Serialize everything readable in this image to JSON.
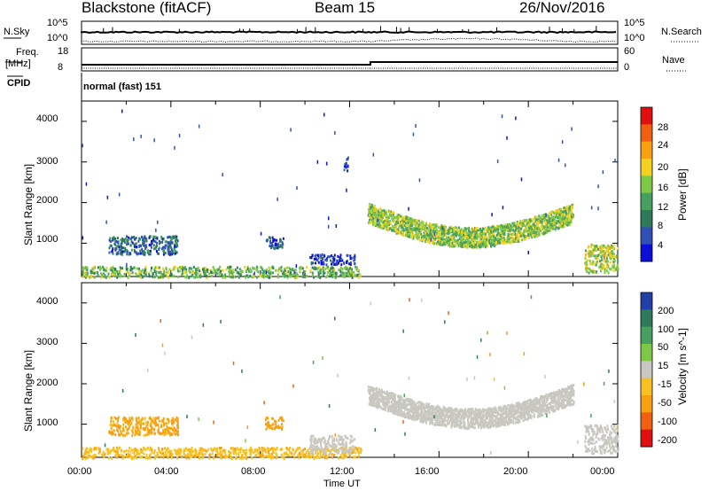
{
  "header": {
    "station": "Blackstone (fitACF)",
    "beam": "Beam 15",
    "date": "26/Nov/2016"
  },
  "top_labels": {
    "nsky": "N.Sky",
    "nsky_ticks": [
      "10^5",
      "10^0"
    ],
    "nsearch": "N.Search",
    "nsearch_ticks": [
      "10^5",
      "10^0"
    ],
    "freq": "Freq.",
    "freq_unit": "[MHz]",
    "freq_ticks": [
      "18",
      "8"
    ],
    "nave": "Nave",
    "nave_ticks": [
      "60",
      "0"
    ],
    "cpid": "CPID",
    "cpid_value": "normal (fast) 151"
  },
  "chart_data": [
    {
      "type": "heatmap",
      "title": "",
      "ylabel": "Slant Range [km]",
      "xlabel": "Time UT",
      "ylim": [
        180,
        4500
      ],
      "y_ticks": [
        "1000",
        "2000",
        "3000",
        "4000"
      ],
      "x_ticks": [
        "00:00",
        "04:00",
        "08:00",
        "12:00",
        "16:00",
        "20:00",
        "00:00"
      ],
      "colorbar": {
        "label": "Power [dB]",
        "ticks": [
          "4",
          "8",
          "12",
          "16",
          "20",
          "24",
          "28"
        ],
        "colors": [
          "#0a10d8",
          "#3050b8",
          "#2e7a5a",
          "#48a060",
          "#7ec848",
          "#f4d020",
          "#f8a010",
          "#f06010",
          "#e01010"
        ]
      },
      "features": [
        {
          "t_start": 0.0,
          "t_end": 12.5,
          "range_low": 180,
          "range_high": 450,
          "power": 18
        },
        {
          "t_start": 1.2,
          "t_end": 4.3,
          "range_low": 750,
          "range_high": 1200,
          "power": 10
        },
        {
          "t_start": 8.2,
          "t_end": 9.0,
          "range_low": 900,
          "range_high": 1200,
          "power": 8
        },
        {
          "t_start": 10.2,
          "t_end": 12.2,
          "range_low": 500,
          "range_high": 750,
          "power": 6
        },
        {
          "t_start": 11.7,
          "t_end": 11.9,
          "range_low": 2800,
          "range_high": 3150,
          "power": 6
        },
        {
          "t_start": 12.8,
          "t_end": 22.0,
          "range_low": 1000,
          "range_high": 2100,
          "power": 20
        },
        {
          "t_start": 22.5,
          "t_end": 24.0,
          "range_low": 300,
          "range_high": 1000,
          "power": 22
        }
      ]
    },
    {
      "type": "heatmap",
      "title": "",
      "ylabel": "Slant Range [km]",
      "xlabel": "Time UT",
      "ylim": [
        180,
        4500
      ],
      "y_ticks": [
        "1000",
        "2000",
        "3000",
        "4000"
      ],
      "x_ticks": [
        "00:00",
        "04:00",
        "08:00",
        "12:00",
        "16:00",
        "20:00",
        "00:00"
      ],
      "colorbar": {
        "label": "Velocity [m s^-1]",
        "ticks": [
          "200",
          "100",
          "50",
          "15",
          "-15",
          "-50",
          "-100",
          "-200"
        ],
        "colors": [
          "#2040a8",
          "#2e7a5a",
          "#48a060",
          "#7ec848",
          "#c8c8c0",
          "#f8c020",
          "#f8a010",
          "#f06010",
          "#e01010"
        ]
      },
      "features": [
        {
          "t_start": 0.0,
          "t_end": 12.5,
          "range_low": 180,
          "range_high": 450,
          "velocity": -40
        },
        {
          "t_start": 1.2,
          "t_end": 4.3,
          "range_low": 750,
          "range_high": 1200,
          "velocity": -60
        },
        {
          "t_start": 8.2,
          "t_end": 9.0,
          "range_low": 900,
          "range_high": 1200,
          "velocity": -70
        },
        {
          "t_start": 10.2,
          "t_end": 12.2,
          "range_low": 300,
          "range_high": 750,
          "velocity": 0
        },
        {
          "t_start": 12.8,
          "t_end": 22.0,
          "range_low": 1000,
          "range_high": 2100,
          "velocity": 0
        },
        {
          "t_start": 22.5,
          "t_end": 24.0,
          "range_low": 300,
          "range_high": 1000,
          "velocity": 0
        }
      ]
    }
  ]
}
